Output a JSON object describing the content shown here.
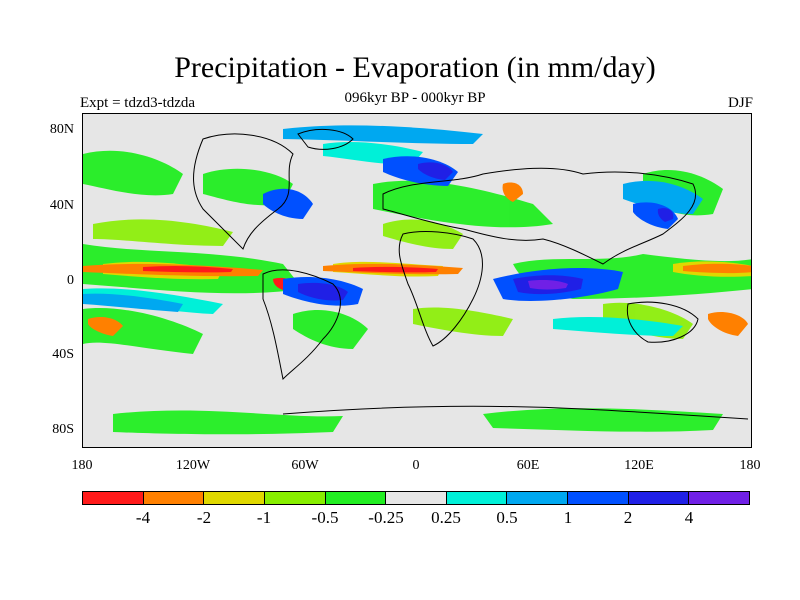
{
  "title": "Precipitation - Evaporation (in mm/day)",
  "subtitle": "096kyr BP - 000kyr BP",
  "experiment": "Expt = tdzd3-tdzda",
  "season": "DJF",
  "y_axis_labels": [
    "80N",
    "40N",
    "0",
    "40S",
    "80S"
  ],
  "x_axis_labels": [
    "180",
    "120W",
    "60W",
    "0",
    "60E",
    "120E",
    "180"
  ],
  "colorbar": {
    "colors": [
      "#ff1a1a",
      "#ff8000",
      "#e0d800",
      "#88ee00",
      "#22ee22",
      "#e6e6e6",
      "#00f0d8",
      "#00a8f0",
      "#0050ff",
      "#2020e6",
      "#7020e6"
    ],
    "labels": [
      "-4",
      "-2",
      "-1",
      "-0.5",
      "-0.25",
      "0.25",
      "0.5",
      "1",
      "2",
      "4"
    ]
  }
}
